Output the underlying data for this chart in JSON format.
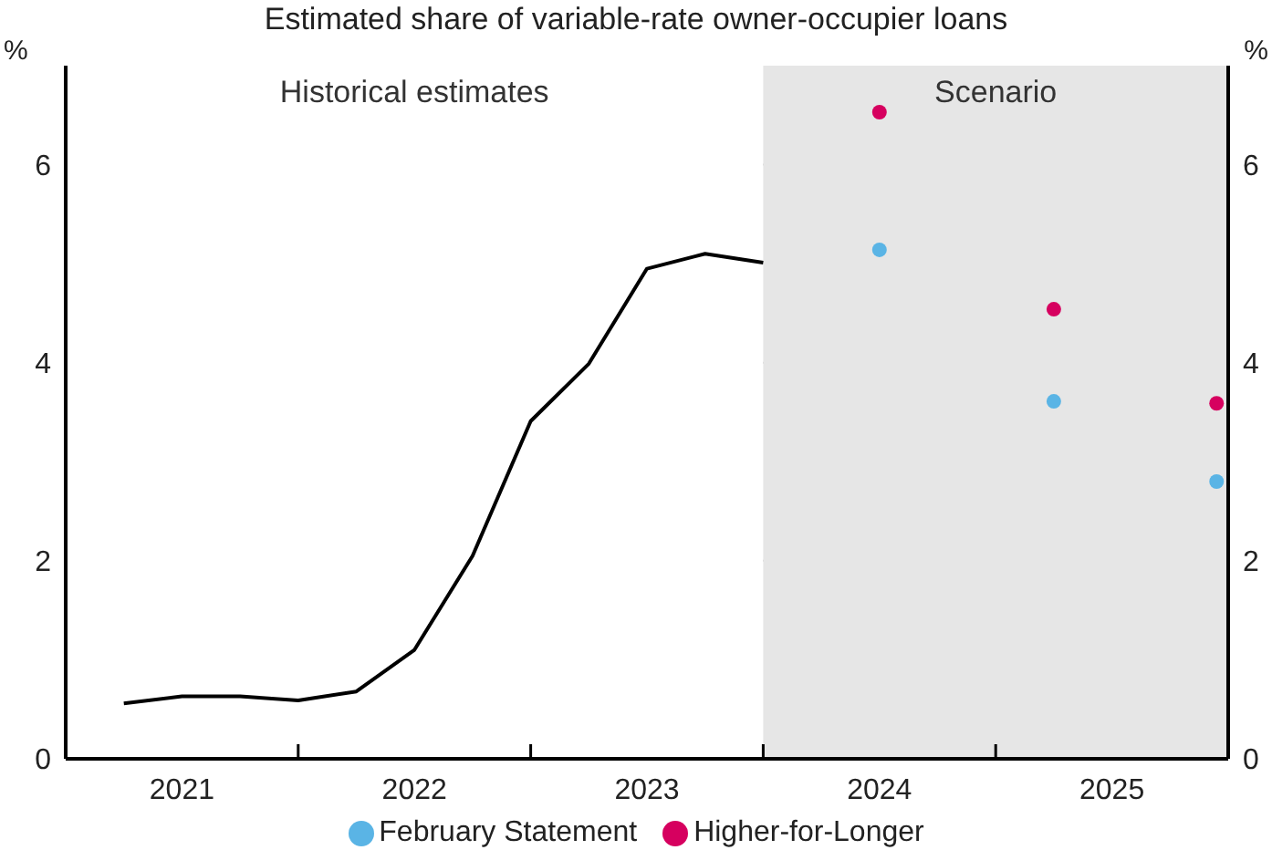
{
  "chart_data": {
    "type": "line",
    "title": "Estimated share of variable-rate owner-occupier loans",
    "ylabel": "%",
    "y2label": "%",
    "xlim": [
      2021,
      2026
    ],
    "xticks": [
      {
        "value": 2021,
        "label": null
      },
      {
        "value": 2021.5,
        "label": "2021"
      },
      {
        "value": 2022,
        "label": null
      },
      {
        "value": 2022.5,
        "label": "2022"
      },
      {
        "value": 2023,
        "label": null
      },
      {
        "value": 2023.5,
        "label": "2023"
      },
      {
        "value": 2024,
        "label": null
      },
      {
        "value": 2024.5,
        "label": "2024"
      },
      {
        "value": 2025,
        "label": null
      },
      {
        "value": 2025.5,
        "label": "2025"
      },
      {
        "value": 2026,
        "label": null
      }
    ],
    "ylim": [
      0,
      7
    ],
    "yticks": [
      0,
      2,
      4,
      6
    ],
    "y2lim": [
      0,
      7
    ],
    "y2ticks": [
      0,
      2,
      4,
      6
    ],
    "grid": "y",
    "legend": "bottom",
    "bands": [
      {
        "axis": "x",
        "from": 2021,
        "to": 2024,
        "label": "Historical estimates",
        "color": "#ffffff"
      },
      {
        "axis": "x",
        "from": 2024,
        "to": 2026,
        "label": "Scenario",
        "color": "#e6e6e6"
      }
    ],
    "series": [
      {
        "color": "#000000",
        "x": [
          2021.25,
          2021.5,
          2021.75,
          2022,
          2022.25,
          2022.5,
          2022.75,
          2023,
          2023.25,
          2023.5,
          2023.75,
          2024
        ],
        "values": [
          0.56,
          0.63,
          0.63,
          0.59,
          0.68,
          1.1,
          2.05,
          3.41,
          3.99,
          4.95,
          5.1,
          5.01
        ]
      },
      {
        "type": "scatter",
        "name": "February Statement",
        "color": "#5ab4e5",
        "marker": "circle",
        "x": [
          2024.5,
          2025.25,
          2025.95
        ],
        "values": [
          5.14,
          3.61,
          2.8
        ]
      },
      {
        "type": "scatter",
        "name": "Higher-for-Longer",
        "color": "#d6005f",
        "marker": "circle",
        "x": [
          2024.5,
          2025.25,
          2025.95
        ],
        "values": [
          6.53,
          4.54,
          3.59
        ]
      }
    ]
  }
}
